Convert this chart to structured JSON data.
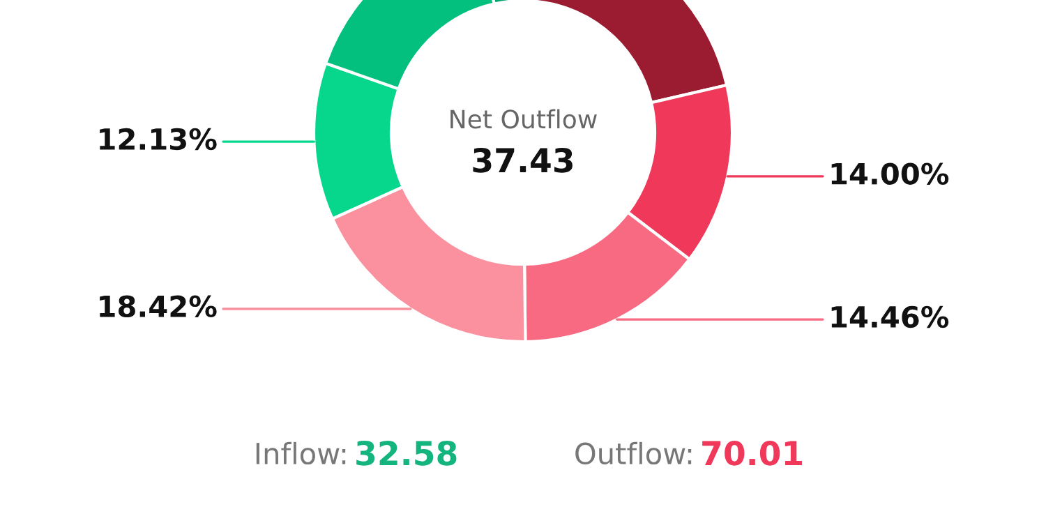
{
  "chart_data": {
    "type": "donut",
    "categories": [
      null,
      null,
      null,
      null,
      null,
      null,
      null
    ],
    "values": [
      21.36,
      14.0,
      14.46,
      18.42,
      12.13,
      16.13,
      3.5
    ],
    "colors": [
      "#9b1b30",
      "#f0395a",
      "#f76a82",
      "#fb909f",
      "#07d68d",
      "#04c07f",
      "#03a36c"
    ],
    "value_labels": [
      null,
      "14.00%",
      "14.46%",
      "18.42%",
      "12.13%",
      null,
      null
    ],
    "annotations": [
      "Net Outflow",
      "37.43",
      "Inflow:",
      "32.58",
      "Outflow:",
      "70.01"
    ]
  }
}
